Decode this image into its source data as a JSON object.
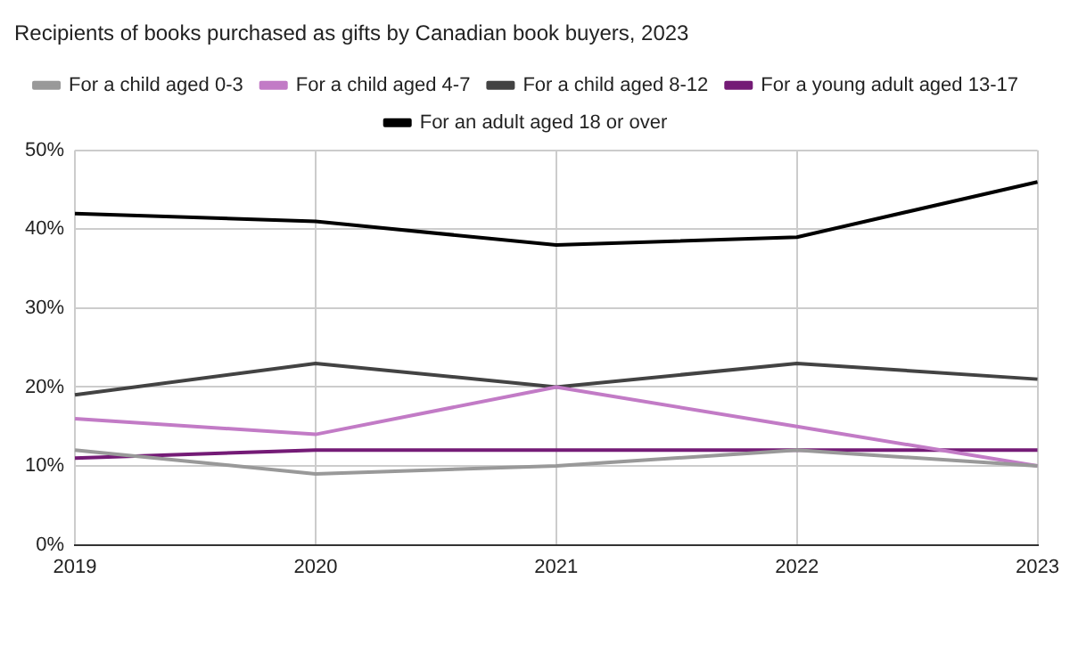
{
  "chart_data": {
    "type": "line",
    "title": "Recipients of books purchased as gifts by Canadian book buyers, 2023",
    "categories": [
      "2019",
      "2020",
      "2021",
      "2022",
      "2023"
    ],
    "series": [
      {
        "name": "For a child aged 0-3",
        "color": "#999999",
        "values": [
          12,
          9,
          10,
          12,
          10
        ]
      },
      {
        "name": "For a child aged 4-7",
        "color": "#c27bc6",
        "values": [
          16,
          14,
          20,
          15,
          10
        ]
      },
      {
        "name": "For a child aged 8-12",
        "color": "#434343",
        "values": [
          19,
          23,
          20,
          23,
          21
        ]
      },
      {
        "name": "For a young adult aged 13-17",
        "color": "#741b76",
        "values": [
          11,
          12,
          12,
          12,
          12
        ]
      },
      {
        "name": "For an adult aged 18 or over",
        "color": "#000000",
        "values": [
          42,
          41,
          38,
          39,
          46
        ]
      }
    ],
    "ylim": [
      0,
      50
    ],
    "yticks": [
      {
        "value": 0,
        "label": "0%"
      },
      {
        "value": 10,
        "label": "10%"
      },
      {
        "value": 20,
        "label": "20%"
      },
      {
        "value": 30,
        "label": "30%"
      },
      {
        "value": 40,
        "label": "40%"
      },
      {
        "value": 50,
        "label": "50%"
      }
    ],
    "grid": true,
    "legend": "top",
    "marker": "none"
  }
}
